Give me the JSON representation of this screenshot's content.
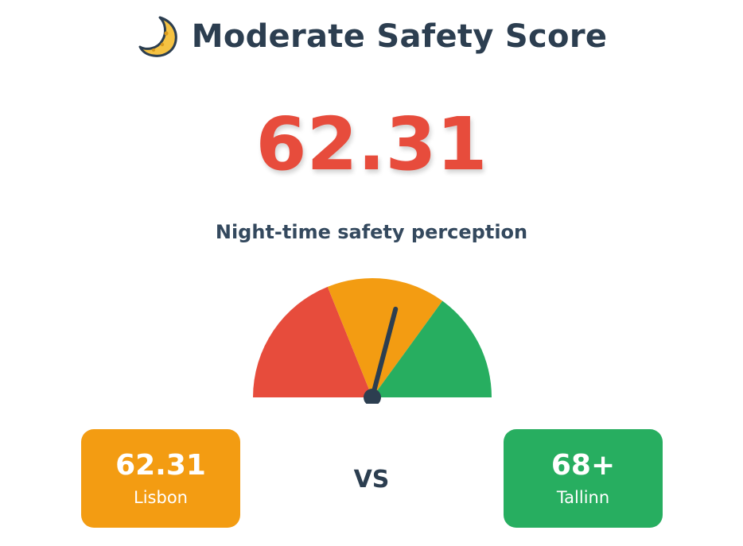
{
  "header": {
    "icon": "crescent-moon-icon",
    "title": "Moderate Safety Score"
  },
  "score": {
    "value": "62.31",
    "label": "Night-time safety perception",
    "color": "#e74c3c"
  },
  "gauge": {
    "value": 62.31,
    "min": 0,
    "max": 100,
    "segments": [
      {
        "color": "#e74c3c"
      },
      {
        "color": "#f39c12"
      },
      {
        "color": "#27ae60"
      }
    ],
    "needle_color": "#2c3e50"
  },
  "comparison": {
    "left": {
      "value": "62.31",
      "label": "Lisbon",
      "color": "#f39c12"
    },
    "vs": "VS",
    "right": {
      "value": "68+",
      "label": "Tallinn",
      "color": "#27ae60"
    }
  }
}
